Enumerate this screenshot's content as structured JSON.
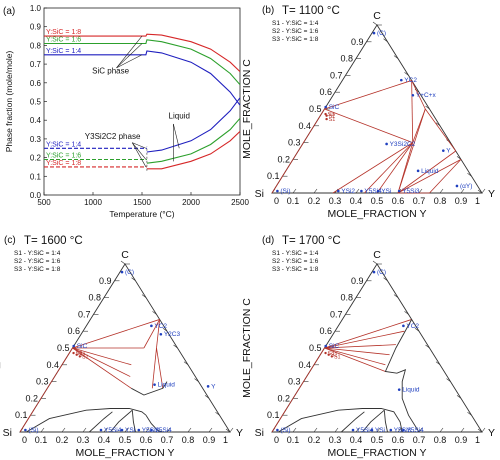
{
  "chart_data": [
    {
      "panel": "(a)",
      "type": "line",
      "xlabel": "Temperature (°C)",
      "ylabel": "Phase fraction (mole/mole)",
      "xlim": [
        500,
        2500
      ],
      "ylim": [
        0.0,
        1.0
      ],
      "x_ticks": [
        500,
        1000,
        1500,
        2000,
        2500
      ],
      "y_ticks": [
        0.0,
        0.1,
        0.2,
        0.3,
        0.4,
        0.5,
        0.6,
        0.7,
        0.8,
        0.9,
        1.0
      ],
      "grid": false,
      "annotations": [
        "SiC phase",
        "Y3Si2C2 phase",
        "Liquid"
      ],
      "series": [
        {
          "name": "Y:SiC = 1:8",
          "phase": "SiC",
          "color": "#d62728",
          "line": "solid",
          "points": [
            [
              500,
              0.85
            ],
            [
              1540,
              0.85
            ],
            [
              1550,
              0.86
            ],
            [
              1700,
              0.855
            ],
            [
              2000,
              0.82
            ],
            [
              2200,
              0.78
            ],
            [
              2400,
              0.71
            ],
            [
              2500,
              0.66
            ]
          ]
        },
        {
          "name": "Y:SiC = 1:6",
          "phase": "SiC",
          "color": "#2ca02c",
          "line": "solid",
          "points": [
            [
              500,
              0.81
            ],
            [
              1540,
              0.81
            ],
            [
              1550,
              0.83
            ],
            [
              1700,
              0.82
            ],
            [
              2000,
              0.78
            ],
            [
              2200,
              0.73
            ],
            [
              2400,
              0.65
            ],
            [
              2500,
              0.59
            ]
          ]
        },
        {
          "name": "Y:SiC = 1:4",
          "phase": "SiC",
          "color": "#1f1fbf",
          "line": "solid",
          "points": [
            [
              500,
              0.75
            ],
            [
              1540,
              0.75
            ],
            [
              1550,
              0.77
            ],
            [
              1700,
              0.76
            ],
            [
              2000,
              0.71
            ],
            [
              2200,
              0.65
            ],
            [
              2400,
              0.55
            ],
            [
              2500,
              0.48
            ]
          ]
        },
        {
          "name": "Y:SiC = 1:4",
          "phase": "Y3Si2C2",
          "color": "#1f1fbf",
          "line": "dashed",
          "points": [
            [
              500,
              0.25
            ],
            [
              1550,
              0.25
            ]
          ]
        },
        {
          "name": "Y:SiC = 1:6",
          "phase": "Y3Si2C2",
          "color": "#2ca02c",
          "line": "dashed",
          "points": [
            [
              500,
              0.19
            ],
            [
              1550,
              0.19
            ]
          ]
        },
        {
          "name": "Y:SiC = 1:8",
          "phase": "Y3Si2C2",
          "color": "#d62728",
          "line": "dashed",
          "points": [
            [
              500,
              0.15
            ],
            [
              1550,
              0.15
            ]
          ]
        },
        {
          "name": "Y:SiC = 1:4",
          "phase": "Liquid",
          "color": "#1f1fbf",
          "line": "solid",
          "points": [
            [
              1550,
              0.23
            ],
            [
              1700,
              0.24
            ],
            [
              2000,
              0.29
            ],
            [
              2200,
              0.35
            ],
            [
              2400,
              0.45
            ],
            [
              2500,
              0.52
            ]
          ]
        },
        {
          "name": "Y:SiC = 1:6",
          "phase": "Liquid",
          "color": "#2ca02c",
          "line": "solid",
          "points": [
            [
              1550,
              0.17
            ],
            [
              1700,
              0.18
            ],
            [
              2000,
              0.22
            ],
            [
              2200,
              0.27
            ],
            [
              2400,
              0.35
            ],
            [
              2500,
              0.41
            ]
          ]
        },
        {
          "name": "Y:SiC = 1:8",
          "phase": "Liquid",
          "color": "#d62728",
          "line": "solid",
          "points": [
            [
              1550,
              0.14
            ],
            [
              1700,
              0.14
            ],
            [
              2000,
              0.18
            ],
            [
              2200,
              0.22
            ],
            [
              2400,
              0.29
            ],
            [
              2500,
              0.34
            ]
          ]
        }
      ]
    },
    {
      "panel": "(b)",
      "type": "ternary",
      "title": "T= 1100 °C",
      "vertices": [
        "Si",
        "C",
        "Y"
      ],
      "axis_x_label": "MOLE_FRACTION Y",
      "axis_y_label": "MOLE_FRACTION C",
      "ticks": [
        "0",
        "0.1",
        "0.2",
        "0.3",
        "0.4",
        "0.5",
        "0.6",
        "0.7",
        "0.8",
        "0.9",
        "1"
      ],
      "legend": [
        "S1 - Y:SiC = 1:4",
        "S2 - Y:SiC = 1:6",
        "S3 - Y:SiC = 1:8"
      ],
      "phase_labels": [
        {
          "text": "(C)",
          "y": 0.03,
          "c": 0.94
        },
        {
          "text": "SiC",
          "y": 0.02,
          "c": 0.5
        },
        {
          "text": "YC2",
          "y": 0.3,
          "c": 0.66
        },
        {
          "text": "Y+C+x",
          "y": 0.4,
          "c": 0.57
        },
        {
          "text": "Y3Si2C2",
          "y": 0.42,
          "c": 0.28
        },
        {
          "text": "(Si)",
          "y": 0.04,
          "c": 0.0
        },
        {
          "text": "YSi2",
          "y": 0.33,
          "c": 0.0
        },
        {
          "text": "Y5Si4",
          "y": 0.44,
          "c": 0.0
        },
        {
          "text": "YSi",
          "y": 0.52,
          "c": 0.0
        },
        {
          "text": "Y5Si3",
          "y": 0.62,
          "c": 0.0
        },
        {
          "text": "Liquid",
          "y": 0.65,
          "c": 0.12
        },
        {
          "text": "(αY)",
          "y": 0.88,
          "c": 0.03
        },
        {
          "text": "Y",
          "y": 0.71,
          "c": 0.24
        }
      ],
      "sample_points": [
        {
          "text": "S1",
          "y": 0.04,
          "c": 0.44
        },
        {
          "text": "S2",
          "y": 0.03,
          "c": 0.46
        },
        {
          "text": "S3",
          "y": 0.02,
          "c": 0.47
        }
      ],
      "tie_lines": [
        [
          [
            0.0,
            0.5
          ],
          [
            0.52,
            0.3
          ]
        ],
        [
          [
            0.0,
            0.5
          ],
          [
            0.33,
            0.67
          ]
        ],
        [
          [
            0.33,
            0.67
          ],
          [
            0.48,
            0.5
          ]
        ],
        [
          [
            0.48,
            0.5
          ],
          [
            0.52,
            0.3
          ]
        ],
        [
          [
            0.33,
            0.67
          ],
          [
            0.52,
            0.3
          ]
        ],
        [
          [
            0.52,
            0.3
          ],
          [
            0.29,
            0.0
          ]
        ],
        [
          [
            0.52,
            0.3
          ],
          [
            0.44,
            0.0
          ]
        ],
        [
          [
            0.52,
            0.3
          ],
          [
            0.5,
            0.0
          ]
        ],
        [
          [
            0.52,
            0.3
          ],
          [
            0.6,
            0.0
          ]
        ],
        [
          [
            0.48,
            0.5
          ],
          [
            0.6,
            0.0
          ]
        ],
        [
          [
            0.48,
            0.5
          ],
          [
            0.75,
            0.25
          ]
        ],
        [
          [
            0.6,
            0.0
          ],
          [
            0.75,
            0.25
          ]
        ],
        [
          [
            0.6,
            0.0
          ],
          [
            0.8,
            0.2
          ]
        ],
        [
          [
            0.6,
            0.0
          ],
          [
            0.75,
            0.0
          ]
        ],
        [
          [
            0.75,
            0.0
          ],
          [
            0.8,
            0.2
          ]
        ],
        [
          [
            0.0,
            0.5
          ],
          [
            0.0,
            0.0
          ]
        ]
      ]
    },
    {
      "panel": "(c)",
      "type": "ternary",
      "title": "T= 1600 °C",
      "vertices": [
        "Si",
        "C",
        "Y"
      ],
      "axis_x_label": "MOLE_FRACTION Y",
      "axis_y_label": "MOLE_FRACTION C",
      "ticks": [
        "0",
        "0.1",
        "0.2",
        "0.3",
        "0.4",
        "0.5",
        "0.6",
        "0.7",
        "0.8",
        "0.9",
        "1"
      ],
      "legend": [
        "S1 - Y:SiC = 1:4",
        "S2 - Y:SiC = 1:6",
        "S3 - Y:SiC = 1:8"
      ],
      "phase_labels": [
        {
          "text": "(C)",
          "y": 0.03,
          "c": 0.94
        },
        {
          "text": "SiC",
          "y": 0.02,
          "c": 0.5
        },
        {
          "text": "YC2",
          "y": 0.33,
          "c": 0.62
        },
        {
          "text": "Y2C3",
          "y": 0.4,
          "c": 0.57
        },
        {
          "text": "Liquid",
          "y": 0.52,
          "c": 0.27
        },
        {
          "text": "Y",
          "y": 0.78,
          "c": 0.26
        },
        {
          "text": "(Si)",
          "y": 0.04,
          "c": 0.0
        },
        {
          "text": "Y5Si4",
          "y": 0.4,
          "c": 0.0
        },
        {
          "text": "YSi",
          "y": 0.5,
          "c": 0.0
        },
        {
          "text": "Y5Si3",
          "y": 0.58,
          "c": 0.0
        },
        {
          "text": "Y5Si4",
          "y": 0.64,
          "c": 0.0
        }
      ],
      "sample_points": [
        {
          "text": "S1",
          "y": 0.06,
          "c": 0.45
        },
        {
          "text": "S2",
          "y": 0.04,
          "c": 0.46
        },
        {
          "text": "S3",
          "y": 0.02,
          "c": 0.47
        }
      ],
      "tie_lines": [
        [
          [
            0.0,
            0.5
          ],
          [
            0.33,
            0.67
          ]
        ],
        [
          [
            0.0,
            0.5
          ],
          [
            0.34,
            0.5
          ]
        ],
        [
          [
            0.0,
            0.5
          ],
          [
            0.33,
            0.4
          ]
        ],
        [
          [
            0.0,
            0.5
          ],
          [
            0.36,
            0.33
          ]
        ],
        [
          [
            0.0,
            0.5
          ],
          [
            0.4,
            0.26
          ]
        ],
        [
          [
            0.33,
            0.67
          ],
          [
            0.4,
            0.5
          ]
        ],
        [
          [
            0.33,
            0.67
          ],
          [
            0.34,
            0.5
          ]
        ],
        [
          [
            0.4,
            0.5
          ],
          [
            0.5,
            0.26
          ]
        ],
        [
          [
            0.4,
            0.5
          ],
          [
            0.55,
            0.26
          ]
        ],
        [
          [
            0.0,
            0.5
          ],
          [
            0.0,
            0.0
          ]
        ]
      ],
      "phase_boundaries": [
        [
          [
            0.03,
            0.0
          ],
          [
            0.1,
            0.08
          ],
          [
            0.25,
            0.13
          ],
          [
            0.36,
            0.14
          ],
          [
            0.45,
            0.14
          ],
          [
            0.52,
            0.12
          ],
          [
            0.55,
            0.1
          ]
        ],
        [
          [
            0.55,
            0.1
          ],
          [
            0.6,
            0.05
          ],
          [
            0.65,
            0.01
          ],
          [
            0.68,
            0.0
          ]
        ],
        [
          [
            0.47,
            0.13
          ],
          [
            0.44,
            0.06
          ],
          [
            0.43,
            0.0
          ]
        ],
        [
          [
            0.47,
            0.13
          ],
          [
            0.51,
            0.06
          ],
          [
            0.55,
            0.0
          ]
        ],
        [
          [
            0.4,
            0.26
          ],
          [
            0.48,
            0.22
          ],
          [
            0.55,
            0.26
          ],
          [
            0.55,
            0.3
          ]
        ],
        [
          [
            0.33,
            0.0
          ],
          [
            0.36,
            0.08
          ],
          [
            0.38,
            0.12
          ]
        ]
      ]
    },
    {
      "panel": "(d)",
      "type": "ternary",
      "title": "T= 1700 °C",
      "vertices": [
        "Si",
        "C",
        "Y"
      ],
      "axis_x_label": "MOLE_FRACTION Y",
      "axis_y_label": "MOLE_FRACTION C",
      "ticks": [
        "0",
        "0.1",
        "0.2",
        "0.3",
        "0.4",
        "0.5",
        "0.6",
        "0.7",
        "0.8",
        "0.9",
        "1"
      ],
      "legend": [
        "S1 - Y:SiC = 1:4",
        "S2 - Y:SiC = 1:6",
        "S3 - Y:SiC = 1:8"
      ],
      "phase_labels": [
        {
          "text": "(C)",
          "y": 0.03,
          "c": 0.94
        },
        {
          "text": "SiC",
          "y": 0.02,
          "c": 0.5
        },
        {
          "text": "YC2",
          "y": 0.33,
          "c": 0.62
        },
        {
          "text": "Liquid",
          "y": 0.5,
          "c": 0.24
        },
        {
          "text": "(Si)",
          "y": 0.04,
          "c": 0.0
        },
        {
          "text": "Y5Si4",
          "y": 0.4,
          "c": 0.0
        },
        {
          "text": "YSi",
          "y": 0.49,
          "c": 0.0
        },
        {
          "text": "Y5Si3",
          "y": 0.58,
          "c": 0.0
        },
        {
          "text": "Y5Si4",
          "y": 0.64,
          "c": 0.0
        }
      ],
      "sample_points": [
        {
          "text": "S1",
          "y": 0.06,
          "c": 0.45
        },
        {
          "text": "S2",
          "y": 0.04,
          "c": 0.46
        },
        {
          "text": "S3",
          "y": 0.02,
          "c": 0.47
        }
      ],
      "tie_lines": [
        [
          [
            0.0,
            0.5
          ],
          [
            0.33,
            0.67
          ]
        ],
        [
          [
            0.0,
            0.5
          ],
          [
            0.33,
            0.6
          ]
        ],
        [
          [
            0.0,
            0.5
          ],
          [
            0.33,
            0.52
          ]
        ],
        [
          [
            0.0,
            0.5
          ],
          [
            0.33,
            0.46
          ]
        ],
        [
          [
            0.0,
            0.5
          ],
          [
            0.34,
            0.4
          ]
        ],
        [
          [
            0.0,
            0.5
          ],
          [
            0.36,
            0.36
          ]
        ],
        [
          [
            0.0,
            0.5
          ],
          [
            0.0,
            0.0
          ]
        ]
      ],
      "phase_boundaries": [
        [
          [
            0.33,
            0.67
          ],
          [
            0.34,
            0.5
          ],
          [
            0.36,
            0.36
          ],
          [
            0.42,
            0.35
          ],
          [
            0.45,
            0.37
          ],
          [
            0.47,
            0.3
          ],
          [
            0.52,
            0.2
          ],
          [
            0.6,
            0.1
          ],
          [
            0.7,
            0.0
          ]
        ],
        [
          [
            0.03,
            0.0
          ],
          [
            0.1,
            0.08
          ],
          [
            0.25,
            0.13
          ],
          [
            0.36,
            0.14
          ],
          [
            0.45,
            0.14
          ],
          [
            0.52,
            0.12
          ],
          [
            0.58,
            0.06
          ],
          [
            0.62,
            0.0
          ]
        ],
        [
          [
            0.47,
            0.13
          ],
          [
            0.44,
            0.06
          ],
          [
            0.43,
            0.0
          ]
        ],
        [
          [
            0.47,
            0.13
          ],
          [
            0.51,
            0.06
          ],
          [
            0.55,
            0.0
          ]
        ],
        [
          [
            0.33,
            0.0
          ],
          [
            0.36,
            0.08
          ],
          [
            0.38,
            0.12
          ]
        ]
      ]
    }
  ]
}
